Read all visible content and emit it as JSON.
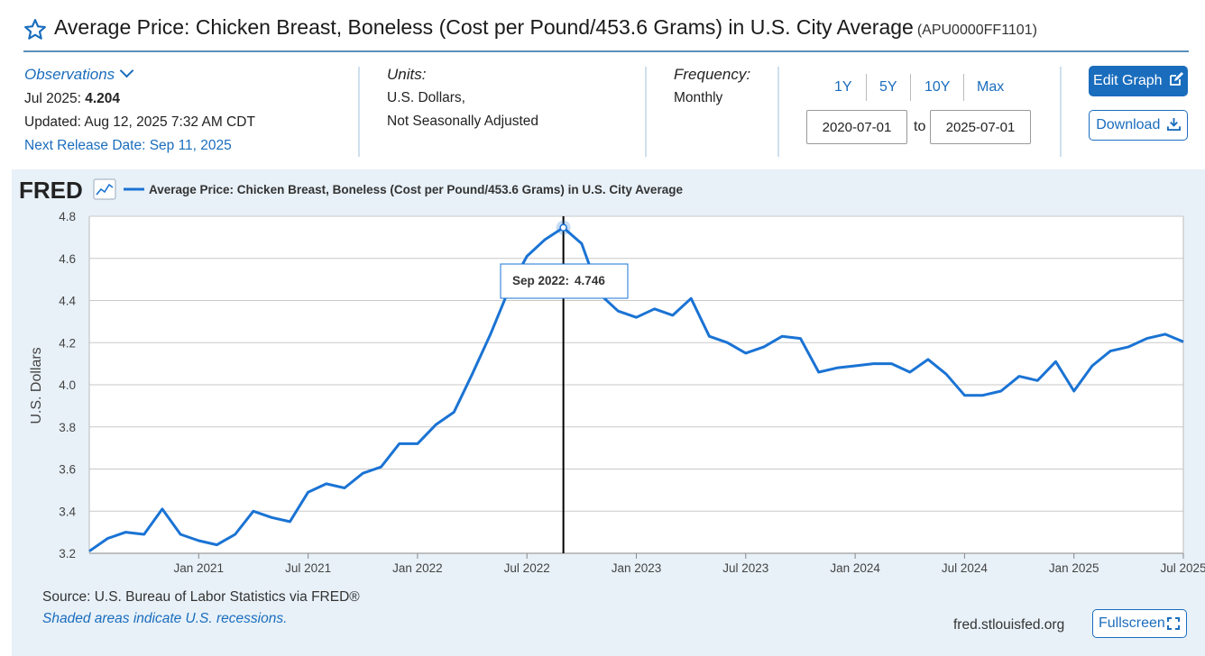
{
  "header": {
    "title": "Average Price: Chicken Breast, Boneless (Cost per Pound/453.6 Grams) in U.S. City Average",
    "series_id": "(APU0000FF1101)"
  },
  "observations": {
    "link_label": "Observations",
    "latest_label": "Jul 2025:",
    "latest_value": "4.204",
    "updated": "Updated: Aug 12, 2025 7:32 AM CDT",
    "next_release": "Next Release Date: Sep 11, 2025"
  },
  "units": {
    "label": "Units:",
    "line1": "U.S. Dollars,",
    "line2": "Not Seasonally Adjusted"
  },
  "frequency": {
    "label": "Frequency:",
    "value": "Monthly"
  },
  "range": {
    "buttons": [
      "1Y",
      "5Y",
      "10Y",
      "Max"
    ],
    "start": "2020-07-01",
    "to_label": "to",
    "end": "2025-07-01"
  },
  "actions": {
    "edit_graph": "Edit Graph",
    "download": "Download",
    "fullscreen": "Fullscreen"
  },
  "footer": {
    "source": "Source: U.S. Bureau of Labor Statistics via FRED®",
    "shaded": "Shaded areas indicate U.S. recessions.",
    "url": "fred.stlouisfed.org"
  },
  "brand": {
    "logo": "FRED",
    "line_color": "#1a73d4",
    "accent": "#1a6dbd"
  },
  "icons": {
    "star": "star-icon",
    "chevron": "chevron-down-icon",
    "edit": "edit-icon",
    "download": "download-icon",
    "fullscreen": "fullscreen-icon",
    "chart": "chart-thumbnail-icon"
  },
  "chart_data": {
    "type": "line",
    "title": "",
    "legend": "Average Price: Chicken Breast, Boneless (Cost per Pound/453.6 Grams) in U.S. City Average",
    "xlabel": "",
    "ylabel": "U.S. Dollars",
    "ylim": [
      3.2,
      4.8
    ],
    "yticks": [
      "3.2",
      "3.4",
      "3.6",
      "3.8",
      "4.0",
      "4.2",
      "4.4",
      "4.6",
      "4.8"
    ],
    "xticks": [
      {
        "date": "2021-01",
        "label": "Jan 2021"
      },
      {
        "date": "2021-07",
        "label": "Jul 2021"
      },
      {
        "date": "2022-01",
        "label": "Jan 2022"
      },
      {
        "date": "2022-07",
        "label": "Jul 2022"
      },
      {
        "date": "2023-01",
        "label": "Jan 2023"
      },
      {
        "date": "2023-07",
        "label": "Jul 2023"
      },
      {
        "date": "2024-01",
        "label": "Jan 2024"
      },
      {
        "date": "2024-07",
        "label": "Jul 2024"
      },
      {
        "date": "2025-01",
        "label": "Jan 2025"
      },
      {
        "date": "2025-07",
        "label": "Jul 2025"
      }
    ],
    "grid": true,
    "series": [
      {
        "name": "Average Price: Chicken Breast, Boneless (Cost per Pound/453.6 Grams) in U.S. City Average",
        "x": [
          "2020-07",
          "2020-08",
          "2020-09",
          "2020-10",
          "2020-11",
          "2020-12",
          "2021-01",
          "2021-02",
          "2021-03",
          "2021-04",
          "2021-05",
          "2021-06",
          "2021-07",
          "2021-08",
          "2021-09",
          "2021-10",
          "2021-11",
          "2021-12",
          "2022-01",
          "2022-02",
          "2022-03",
          "2022-04",
          "2022-05",
          "2022-06",
          "2022-07",
          "2022-08",
          "2022-09",
          "2022-10",
          "2022-11",
          "2022-12",
          "2023-01",
          "2023-02",
          "2023-03",
          "2023-04",
          "2023-05",
          "2023-06",
          "2023-07",
          "2023-08",
          "2023-09",
          "2023-10",
          "2023-11",
          "2023-12",
          "2024-01",
          "2024-02",
          "2024-03",
          "2024-04",
          "2024-05",
          "2024-06",
          "2024-07",
          "2024-08",
          "2024-09",
          "2024-10",
          "2024-11",
          "2024-12",
          "2025-01",
          "2025-02",
          "2025-03",
          "2025-04",
          "2025-05",
          "2025-06",
          "2025-07"
        ],
        "values": [
          3.21,
          3.27,
          3.3,
          3.29,
          3.41,
          3.29,
          3.26,
          3.24,
          3.29,
          3.4,
          3.37,
          3.35,
          3.49,
          3.53,
          3.51,
          3.58,
          3.61,
          3.72,
          3.72,
          3.81,
          3.87,
          4.05,
          4.24,
          4.45,
          4.61,
          4.69,
          4.746,
          4.67,
          4.43,
          4.35,
          4.32,
          4.36,
          4.33,
          4.41,
          4.23,
          4.2,
          4.15,
          4.18,
          4.23,
          4.22,
          4.06,
          4.08,
          4.09,
          4.1,
          4.1,
          4.06,
          4.12,
          4.05,
          3.95,
          3.95,
          3.97,
          4.04,
          4.02,
          4.11,
          3.97,
          4.09,
          4.16,
          4.18,
          4.22,
          4.24,
          4.204
        ]
      }
    ],
    "tooltip": {
      "date": "Sep 2022:",
      "value": "4.746"
    }
  }
}
